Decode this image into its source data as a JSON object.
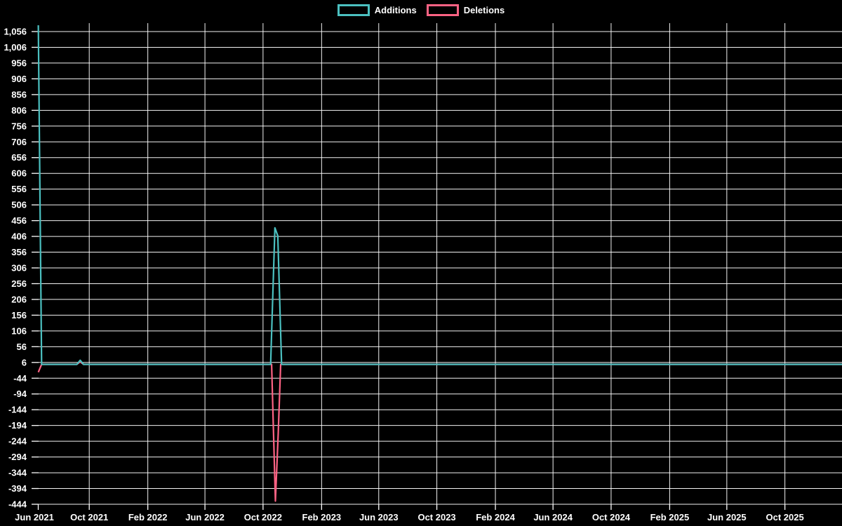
{
  "legend": {
    "items": [
      {
        "label": "Additions",
        "color": "#4bc0c0"
      },
      {
        "label": "Deletions",
        "color": "#ff6384"
      }
    ]
  },
  "chart_data": {
    "type": "line",
    "title": "",
    "xlabel": "",
    "ylabel": "",
    "background_color": "#000000",
    "grid": true,
    "grid_color": "#ffffff",
    "axis_text_color": "#ffffff",
    "legend_position": "top-center",
    "x_axis": {
      "type": "time",
      "min": "2021-06-16",
      "max": "2026-01-30",
      "tick_dates": [
        "2021-06-01",
        "2021-10-01",
        "2022-02-01",
        "2022-06-01",
        "2022-10-01",
        "2023-02-01",
        "2023-06-01",
        "2023-10-01",
        "2024-02-01",
        "2024-06-01",
        "2024-10-01",
        "2025-02-01",
        "2025-06-01",
        "2025-10-01"
      ],
      "tick_labels": [
        "Jun 2021",
        "Oct 2021",
        "Feb 2022",
        "Jun 2022",
        "Oct 2022",
        "Feb 2023",
        "Jun 2023",
        "Oct 2023",
        "Feb 2024",
        "Jun 2024",
        "Oct 2024",
        "Feb 2025",
        "Jun 2025",
        "Oct 2025"
      ]
    },
    "y_axis": {
      "min": -444,
      "max": 1078,
      "tick_step": 50,
      "tick_values": [
        1056,
        1006,
        956,
        906,
        856,
        806,
        756,
        706,
        656,
        606,
        556,
        506,
        456,
        406,
        356,
        306,
        256,
        206,
        156,
        106,
        56,
        6,
        -44,
        -94,
        -144,
        -194,
        -244,
        -294,
        -344,
        -394,
        -444
      ],
      "tick_labels": [
        "1,056",
        "1,006",
        "956",
        "906",
        "856",
        "806",
        "756",
        "706",
        "656",
        "606",
        "556",
        "506",
        "456",
        "406",
        "356",
        "306",
        "256",
        "206",
        "156",
        "106",
        "56",
        "6",
        "-44",
        "-94",
        "-144",
        "-194",
        "-244",
        "-294",
        "-344",
        "-394",
        "-444"
      ]
    },
    "series": [
      {
        "name": "Additions",
        "color": "#4bc0c0",
        "points": [
          {
            "date": "2021-06-16",
            "value": 1076
          },
          {
            "date": "2021-06-23",
            "value": 0
          },
          {
            "date": "2021-09-05",
            "value": 0
          },
          {
            "date": "2021-09-12",
            "value": 13
          },
          {
            "date": "2021-09-19",
            "value": 0
          },
          {
            "date": "2022-10-17",
            "value": 0
          },
          {
            "date": "2022-10-26",
            "value": 433
          },
          {
            "date": "2022-11-01",
            "value": 408
          },
          {
            "date": "2022-11-09",
            "value": 0
          },
          {
            "date": "2026-01-30",
            "value": 0
          }
        ]
      },
      {
        "name": "Deletions",
        "color": "#ff6384",
        "points": [
          {
            "date": "2021-06-16",
            "value": -25
          },
          {
            "date": "2021-06-23",
            "value": 0
          },
          {
            "date": "2021-09-05",
            "value": 0
          },
          {
            "date": "2021-09-12",
            "value": 8
          },
          {
            "date": "2021-09-19",
            "value": 0
          },
          {
            "date": "2022-10-19",
            "value": 0
          },
          {
            "date": "2022-10-27",
            "value": -434
          },
          {
            "date": "2022-11-02",
            "value": -215
          },
          {
            "date": "2022-11-07",
            "value": 0
          },
          {
            "date": "2026-01-30",
            "value": 0
          }
        ]
      }
    ]
  }
}
